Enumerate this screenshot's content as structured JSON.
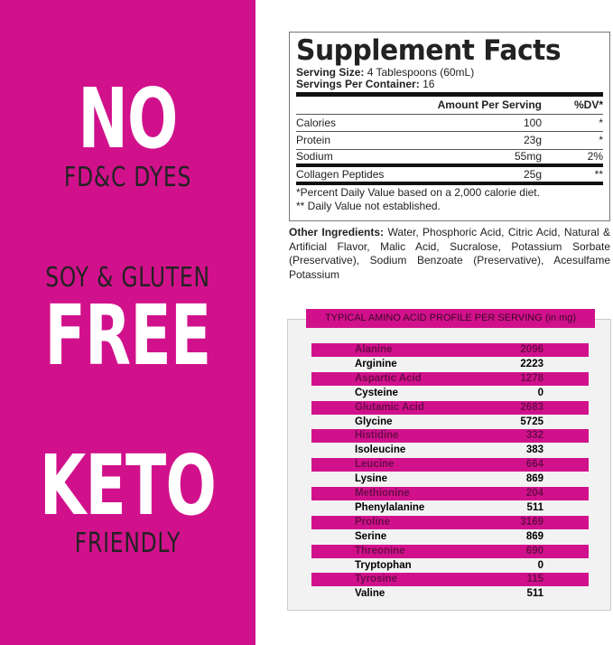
{
  "left": {
    "claims": [
      {
        "big": "NO",
        "small": "FD&C DYES"
      },
      {
        "small": "SOY & GLUTEN",
        "big": "FREE"
      },
      {
        "big": "KETO",
        "small": "FRIENDLY"
      }
    ],
    "color": "#d1118b"
  },
  "facts": {
    "title": "Supplement Facts",
    "serving_size_label": "Serving Size:",
    "serving_size": "4 Tablespoons (60mL)",
    "servings_label": "Servings Per Container:",
    "servings": "16",
    "col_amount": "Amount Per Serving",
    "col_dv": "%DV*",
    "rows": [
      {
        "name": "Calories",
        "amount": "100",
        "dv": "*"
      },
      {
        "name": "Protein",
        "amount": "23g",
        "dv": "*"
      },
      {
        "name": "Sodium",
        "amount": "55mg",
        "dv": "2%"
      },
      {
        "name": "Collagen Peptides",
        "amount": "25g",
        "dv": "**"
      }
    ],
    "note1": "*Percent Daily Value based on a 2,000 calorie diet.",
    "note2": "** Daily Value not established."
  },
  "other": {
    "label": "Other Ingredients:",
    "text": "Water, Phosphoric Acid, Citric Acid, Natural & Artificial Flavor, Malic Acid, Sucralose, Potassium Sorbate (Preservative), Sodium Benzoate (Preservative), Acesulfame Potassium"
  },
  "amino": {
    "title": "TYPICAL AMINO ACID PROFILE PER SERVING (in mg)",
    "rows": [
      {
        "name": "Alanine",
        "value": "2096"
      },
      {
        "name": "Arginine",
        "value": "2223"
      },
      {
        "name": "Aspartic Acid",
        "value": "1278"
      },
      {
        "name": "Cysteine",
        "value": "0"
      },
      {
        "name": "Glutamic Acid",
        "value": "2683"
      },
      {
        "name": "Glycine",
        "value": "5725"
      },
      {
        "name": "Histidine",
        "value": "332"
      },
      {
        "name": "Isoleucine",
        "value": "383"
      },
      {
        "name": "Leucine",
        "value": "664"
      },
      {
        "name": "Lysine",
        "value": "869"
      },
      {
        "name": "Methionine",
        "value": "204"
      },
      {
        "name": "Phenylalanine",
        "value": "511"
      },
      {
        "name": "Proline",
        "value": "3169"
      },
      {
        "name": "Serine",
        "value": "869"
      },
      {
        "name": "Threonine",
        "value": "690"
      },
      {
        "name": "Tryptophan",
        "value": "0"
      },
      {
        "name": "Tyrosine",
        "value": "115"
      },
      {
        "name": "Valine",
        "value": "511"
      }
    ]
  }
}
